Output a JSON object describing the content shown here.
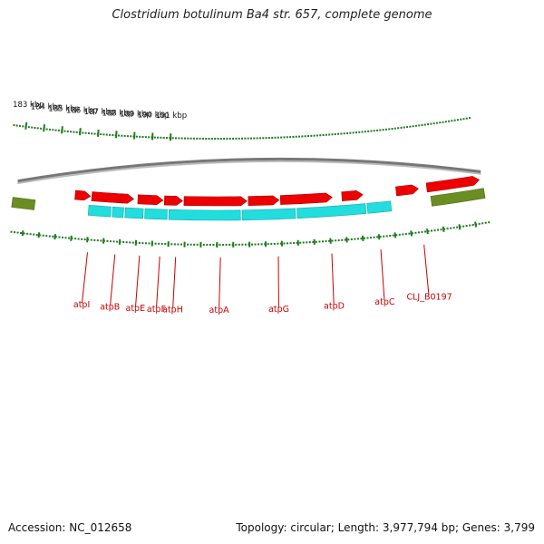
{
  "title": "Clostridium botulinum Ba4 str. 657, complete genome",
  "footer": {
    "accession": "Accession: NC_012658",
    "topology": "Topology: circular; Length: 3,977,794 bp; Genes: 3,799"
  },
  "colors": {
    "cds": "#ee0000",
    "gene_cyan": "#22dddd",
    "gene_olive": "#6b8e23",
    "backbone": "#777777",
    "tick": "#1f7a1f",
    "label": "#cc0000"
  },
  "axis": {
    "unit": "kbp",
    "ticks": [
      183,
      184,
      185,
      186,
      187,
      188,
      189,
      190,
      191
    ],
    "tick_labels": [
      "183 kbp",
      "184 kbp",
      "185 kbp",
      "186 kbp",
      "187 kbp",
      "188 kbp",
      "189 kbp",
      "190 kbp",
      "191 kbp"
    ]
  },
  "genes": [
    {
      "name": "atpI"
    },
    {
      "name": "atpB"
    },
    {
      "name": "atpE"
    },
    {
      "name": "atpF"
    },
    {
      "name": "atpH"
    },
    {
      "name": "atpA"
    },
    {
      "name": "atpG"
    },
    {
      "name": "atpD"
    },
    {
      "name": "atpC"
    },
    {
      "name": "CLJ_B0197"
    }
  ]
}
